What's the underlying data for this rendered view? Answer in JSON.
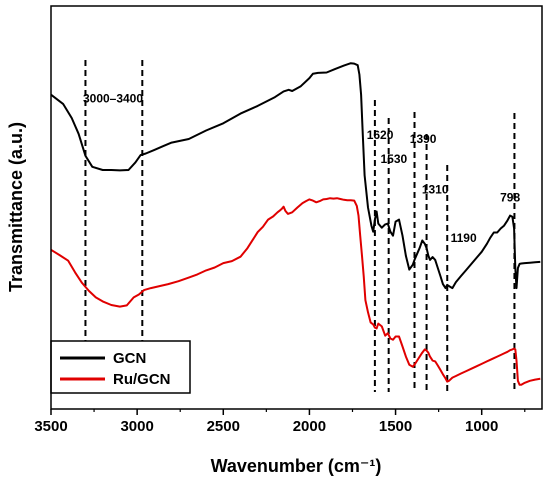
{
  "chart_data": {
    "type": "line",
    "xlabel": "Wavenumber (cm⁻¹)",
    "ylabel": "Transmittance (a.u.)",
    "xlim": [
      3500,
      650
    ],
    "x_reversed": true,
    "y_ticks_shown": false,
    "grid": false,
    "legend_position": "bottom-left",
    "x_ticks": [
      3500,
      3000,
      2500,
      2000,
      1500,
      1000
    ],
    "x_tick_labels": [
      "3500",
      "3000",
      "2500",
      "2000",
      "1500",
      "1000"
    ],
    "series": [
      {
        "name": "GCN",
        "color": "#000000",
        "x": [
          3500,
          3430,
          3380,
          3340,
          3300,
          3260,
          3200,
          3150,
          3100,
          3050,
          3010,
          2980,
          2950,
          2900,
          2850,
          2800,
          2700,
          2600,
          2500,
          2400,
          2300,
          2200,
          2150,
          2120,
          2100,
          2050,
          2000,
          1980,
          1950,
          1900,
          1850,
          1800,
          1760,
          1740,
          1720,
          1710,
          1700,
          1690,
          1680,
          1660,
          1640,
          1630,
          1620,
          1610,
          1600,
          1580,
          1560,
          1545,
          1530,
          1515,
          1500,
          1480,
          1460,
          1440,
          1420,
          1400,
          1390,
          1375,
          1360,
          1345,
          1330,
          1320,
          1310,
          1300,
          1285,
          1270,
          1255,
          1240,
          1225,
          1210,
          1200,
          1190,
          1170,
          1150,
          1120,
          1090,
          1060,
          1030,
          1000,
          970,
          950,
          930,
          910,
          890,
          870,
          850,
          835,
          822,
          812,
          805,
          798,
          790,
          780,
          770,
          750,
          720,
          690,
          660
        ],
        "y": [
          0.78,
          0.757,
          0.722,
          0.683,
          0.628,
          0.601,
          0.593,
          0.593,
          0.592,
          0.593,
          0.612,
          0.63,
          0.634,
          0.643,
          0.652,
          0.661,
          0.67,
          0.691,
          0.709,
          0.733,
          0.752,
          0.774,
          0.788,
          0.792,
          0.789,
          0.801,
          0.821,
          0.832,
          0.834,
          0.835,
          0.844,
          0.852,
          0.858,
          0.857,
          0.853,
          0.83,
          0.78,
          0.68,
          0.58,
          0.5,
          0.455,
          0.44,
          0.47,
          0.49,
          0.46,
          0.45,
          0.458,
          0.46,
          0.44,
          0.43,
          0.465,
          0.47,
          0.43,
          0.38,
          0.346,
          0.358,
          0.37,
          0.385,
          0.4,
          0.418,
          0.41,
          0.399,
          0.381,
          0.37,
          0.377,
          0.37,
          0.35,
          0.33,
          0.31,
          0.3,
          0.308,
          0.305,
          0.3,
          0.315,
          0.33,
          0.345,
          0.36,
          0.375,
          0.39,
          0.41,
          0.425,
          0.438,
          0.438,
          0.448,
          0.455,
          0.468,
          0.48,
          0.477,
          0.448,
          0.35,
          0.3,
          0.35,
          0.36,
          0.361,
          0.362,
          0.363,
          0.364,
          0.365
        ]
      },
      {
        "name": "Ru/GCN",
        "color": "#e00000",
        "x": [
          3500,
          3450,
          3400,
          3360,
          3320,
          3280,
          3240,
          3200,
          3150,
          3100,
          3060,
          3020,
          2990,
          2960,
          2920,
          2870,
          2820,
          2760,
          2700,
          2650,
          2600,
          2550,
          2500,
          2450,
          2400,
          2360,
          2330,
          2300,
          2270,
          2240,
          2210,
          2185,
          2170,
          2160,
          2150,
          2140,
          2125,
          2100,
          2070,
          2040,
          2020,
          2000,
          1980,
          1960,
          1940,
          1920,
          1900,
          1880,
          1860,
          1840,
          1820,
          1800,
          1780,
          1760,
          1740,
          1725,
          1715,
          1705,
          1695,
          1685,
          1675,
          1660,
          1645,
          1630,
          1620,
          1610,
          1600,
          1580,
          1560,
          1545,
          1530,
          1515,
          1500,
          1480,
          1460,
          1440,
          1420,
          1400,
          1390,
          1375,
          1360,
          1345,
          1330,
          1320,
          1310,
          1300,
          1285,
          1270,
          1255,
          1240,
          1225,
          1210,
          1200,
          1190,
          1170,
          1150,
          1120,
          1090,
          1060,
          1030,
          1000,
          970,
          950,
          930,
          910,
          890,
          870,
          850,
          835,
          822,
          812,
          805,
          798,
          790,
          780,
          770,
          750,
          720,
          690,
          660
        ],
        "y": [
          0.395,
          0.382,
          0.368,
          0.339,
          0.313,
          0.293,
          0.277,
          0.267,
          0.258,
          0.254,
          0.257,
          0.277,
          0.284,
          0.295,
          0.3,
          0.305,
          0.31,
          0.317,
          0.326,
          0.334,
          0.344,
          0.351,
          0.362,
          0.367,
          0.378,
          0.399,
          0.419,
          0.439,
          0.452,
          0.47,
          0.478,
          0.488,
          0.493,
          0.497,
          0.502,
          0.492,
          0.484,
          0.488,
          0.5,
          0.511,
          0.516,
          0.52,
          0.517,
          0.513,
          0.516,
          0.52,
          0.521,
          0.523,
          0.522,
          0.523,
          0.521,
          0.519,
          0.518,
          0.518,
          0.517,
          0.504,
          0.48,
          0.43,
          0.38,
          0.33,
          0.27,
          0.24,
          0.215,
          0.21,
          0.202,
          0.2,
          0.212,
          0.205,
          0.182,
          0.188,
          0.175,
          0.172,
          0.18,
          0.18,
          0.155,
          0.13,
          0.11,
          0.105,
          0.11,
          0.12,
          0.13,
          0.14,
          0.148,
          0.145,
          0.14,
          0.13,
          0.12,
          0.118,
          0.108,
          0.097,
          0.086,
          0.076,
          0.068,
          0.07,
          0.078,
          0.082,
          0.088,
          0.094,
          0.1,
          0.106,
          0.112,
          0.118,
          0.122,
          0.126,
          0.13,
          0.134,
          0.138,
          0.142,
          0.146,
          0.148,
          0.15,
          0.148,
          0.12,
          0.07,
          0.06,
          0.06,
          0.065,
          0.07,
          0.073,
          0.075
        ]
      }
    ],
    "vertical_markers": [
      3300,
      2970,
      1620,
      1540,
      1390,
      1320,
      1200,
      810
    ],
    "annotations": [
      {
        "text": "3000–3400",
        "x": 3140,
        "y": 0.76
      },
      {
        "text": "1620",
        "x": 1590,
        "y": 0.67
      },
      {
        "text": "1530",
        "x": 1510,
        "y": 0.61
      },
      {
        "text": "1390",
        "x": 1340,
        "y": 0.66
      },
      {
        "text": "1310",
        "x": 1270,
        "y": 0.535
      },
      {
        "text": "1190",
        "x": 1105,
        "y": 0.415
      },
      {
        "text": "798",
        "x": 835,
        "y": 0.515
      }
    ]
  }
}
